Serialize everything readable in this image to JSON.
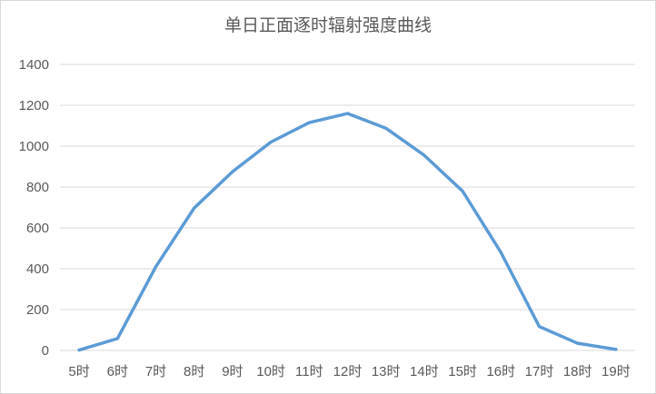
{
  "chart_data": {
    "type": "line",
    "title": "单日正面逐时辐射强度曲线",
    "categories": [
      "5时",
      "6时",
      "7时",
      "8时",
      "9时",
      "10时",
      "11时",
      "12时",
      "13时",
      "14时",
      "15时",
      "16时",
      "17时",
      "18时",
      "19时"
    ],
    "series": [
      {
        "values": [
          2,
          58,
          410,
          697,
          875,
          1020,
          1115,
          1160,
          1088,
          955,
          780,
          480,
          117,
          35,
          5
        ]
      }
    ],
    "ylim": [
      0,
      1400
    ],
    "yticks": [
      0,
      200,
      400,
      600,
      800,
      1000,
      1200,
      1400
    ],
    "xlabel": "",
    "ylabel": "",
    "grid": true,
    "legend": "none",
    "colors": {
      "line": "#5b9bd5",
      "grid": "#d9d9d9",
      "text": "#595959"
    }
  }
}
